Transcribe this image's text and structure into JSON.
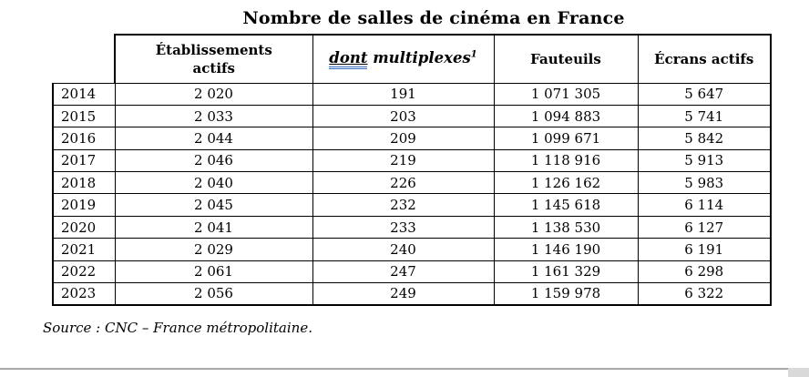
{
  "document": {
    "title": "Nombre de salles de cinéma en France",
    "source_note": "Source : CNC – France métropolitaine."
  },
  "table": {
    "headers": {
      "etablissements": "Établissements actifs",
      "multiplexes_dont": "dont",
      "multiplexes_rest": " multiplexes",
      "multiplexes_footnote": "1",
      "fauteuils": "Fauteuils",
      "ecrans": "Écrans actifs"
    },
    "rows": [
      {
        "year": "2014",
        "etablissements": "2 020",
        "multiplexes": "191",
        "fauteuils": "1 071 305",
        "ecrans": "5 647"
      },
      {
        "year": "2015",
        "etablissements": "2 033",
        "multiplexes": "203",
        "fauteuils": "1 094 883",
        "ecrans": "5 741"
      },
      {
        "year": "2016",
        "etablissements": "2 044",
        "multiplexes": "209",
        "fauteuils": "1 099 671",
        "ecrans": "5 842"
      },
      {
        "year": "2017",
        "etablissements": "2 046",
        "multiplexes": "219",
        "fauteuils": "1 118 916",
        "ecrans": "5 913"
      },
      {
        "year": "2018",
        "etablissements": "2 040",
        "multiplexes": "226",
        "fauteuils": "1 126 162",
        "ecrans": "5 983"
      },
      {
        "year": "2019",
        "etablissements": "2 045",
        "multiplexes": "232",
        "fauteuils": "1 145 618",
        "ecrans": "6 114"
      },
      {
        "year": "2020",
        "etablissements": "2 041",
        "multiplexes": "233",
        "fauteuils": "1 138 530",
        "ecrans": "6 127"
      },
      {
        "year": "2021",
        "etablissements": "2 029",
        "multiplexes": "240",
        "fauteuils": "1 146 190",
        "ecrans": "6 191"
      },
      {
        "year": "2022",
        "etablissements": "2 061",
        "multiplexes": "247",
        "fauteuils": "1 161 329",
        "ecrans": "6 298"
      },
      {
        "year": "2023",
        "etablissements": "2 056",
        "multiplexes": "249",
        "fauteuils": "1 159 978",
        "ecrans": "6 322"
      }
    ]
  },
  "chrome": {
    "underline_color": "#3a70c2",
    "scrollbar_corner_color": "#d9d9d9",
    "viewport_line_color": "#a9a9a9"
  }
}
